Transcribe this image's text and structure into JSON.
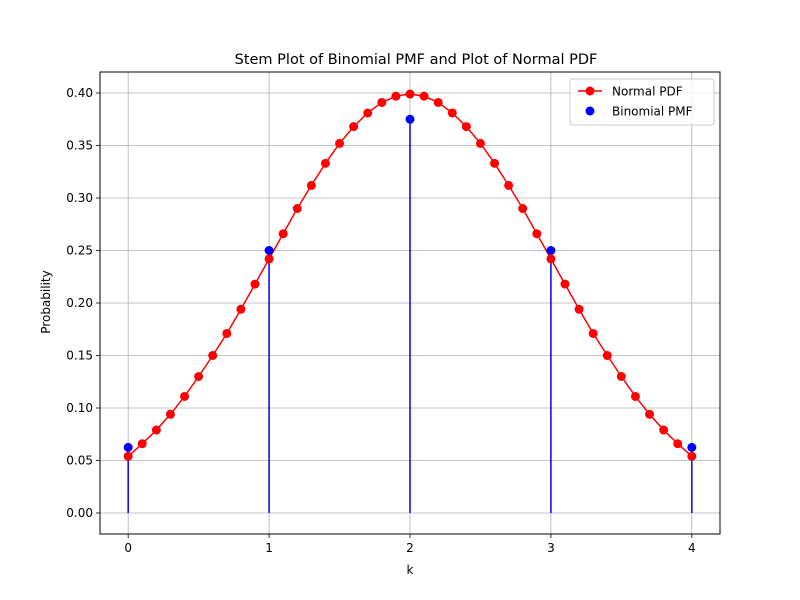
{
  "chart_data": {
    "type": "line",
    "title": "Stem Plot of Binomial PMF and Plot of Normal PDF",
    "xlabel": "k",
    "ylabel": "Probability",
    "xlim": [
      -0.2,
      4.2
    ],
    "ylim": [
      -0.02,
      0.42
    ],
    "xticks": [
      0,
      1,
      2,
      3,
      4
    ],
    "xtick_labels": [
      "0",
      "1",
      "2",
      "3",
      "4"
    ],
    "yticks": [
      0.0,
      0.05,
      0.1,
      0.15,
      0.2,
      0.25,
      0.3,
      0.35,
      0.4
    ],
    "ytick_labels": [
      "0.00",
      "0.05",
      "0.10",
      "0.15",
      "0.20",
      "0.25",
      "0.30",
      "0.35",
      "0.40"
    ],
    "grid": true,
    "legend_position": "top-right",
    "series": [
      {
        "name": "Normal PDF",
        "kind": "line-marker",
        "color": "#ff0000",
        "x": [
          0.0,
          0.1,
          0.2,
          0.3,
          0.4,
          0.5,
          0.6,
          0.7,
          0.8,
          0.9,
          1.0,
          1.1,
          1.2,
          1.3,
          1.4,
          1.5,
          1.6,
          1.7,
          1.8,
          1.9,
          2.0,
          2.1,
          2.2,
          2.3,
          2.4,
          2.5,
          2.6,
          2.7,
          2.8,
          2.9,
          3.0,
          3.1,
          3.2,
          3.3,
          3.4,
          3.5,
          3.6,
          3.7,
          3.8,
          3.9,
          4.0
        ],
        "y": [
          0.054,
          0.066,
          0.079,
          0.094,
          0.111,
          0.13,
          0.15,
          0.171,
          0.194,
          0.218,
          0.242,
          0.266,
          0.29,
          0.312,
          0.333,
          0.352,
          0.368,
          0.381,
          0.391,
          0.397,
          0.399,
          0.397,
          0.391,
          0.381,
          0.368,
          0.352,
          0.333,
          0.312,
          0.29,
          0.266,
          0.242,
          0.218,
          0.194,
          0.171,
          0.15,
          0.13,
          0.111,
          0.094,
          0.079,
          0.066,
          0.054
        ]
      },
      {
        "name": "Binomial PMF",
        "kind": "stem",
        "color": "#0000ff",
        "x": [
          0,
          1,
          2,
          3,
          4
        ],
        "y": [
          0.0625,
          0.25,
          0.375,
          0.25,
          0.0625
        ]
      }
    ]
  }
}
